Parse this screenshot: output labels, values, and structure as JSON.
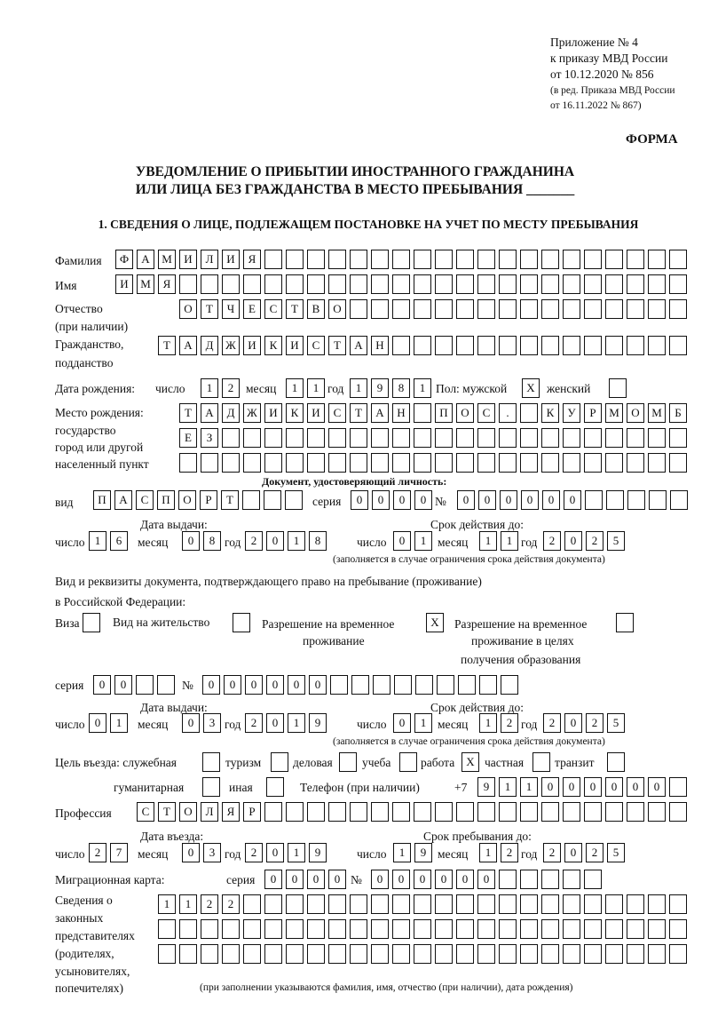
{
  "header": {
    "line1": "Приложение № 4",
    "line2": "к приказу МВД России",
    "line3": "от 10.12.2020 № 856",
    "line4": "(в ред. Приказа МВД России",
    "line5": "от 16.11.2022 № 867)",
    "forma": "ФОРМА",
    "title1": "УВЕДОМЛЕНИЕ О ПРИБЫТИИ ИНОСТРАННОГО ГРАЖДАНИНА",
    "title2": "ИЛИ ЛИЦА БЕЗ ГРАЖДАНСТВА В МЕСТО ПРЕБЫВАНИЯ _______",
    "section1": "1. СВЕДЕНИЯ О ЛИЦЕ, ПОДЛЕЖАЩЕМ ПОСТАНОВКЕ НА УЧЕТ ПО МЕСТУ ПРЕБЫВАНИЯ"
  },
  "labels": {
    "surname": "Фамилия",
    "name": "Имя",
    "patronymic1": "Отчество",
    "patronymic2": "(при наличии)",
    "citizenship1": "Гражданство,",
    "citizenship2": "подданство",
    "birth_date": "Дата рождения:",
    "day": "число",
    "month": "месяц",
    "year": "год",
    "sex_male": "Пол: мужской",
    "sex_female": "женский",
    "birth_place1": "Место рождения:",
    "birth_place2": "государство",
    "birth_place3": "город или другой",
    "birth_place4": "населенный пункт",
    "id_doc": "Документ, удостоверяющий личность:",
    "kind": "вид",
    "series": "серия",
    "number": "№",
    "issue_date": "Дата выдачи:",
    "valid_until": "Срок действия до:",
    "valid_note": "(заполняется в случае ограничения срока действия документа)",
    "right_doc1": "Вид и реквизиты документа, подтверждающего право на пребывание (проживание)",
    "right_doc2": "в Российской Федерации:",
    "visa": "Виза",
    "residence_permit": "Вид на жительство",
    "temp_permit1": "Разрешение на временное",
    "temp_permit2": "проживание",
    "temp_edu1": "Разрешение на временное",
    "temp_edu2": "проживание в целях",
    "temp_edu3": "получения образования",
    "purpose": "Цель въезда: служебная",
    "tourism": "туризм",
    "business": "деловая",
    "study": "учеба",
    "work": "работа",
    "private": "частная",
    "transit": "транзит",
    "humanitarian": "гуманитарная",
    "other": "иная",
    "phone": "Телефон (при наличии)",
    "phone_prefix": "+7",
    "profession": "Профессия",
    "entry_date": "Дата въезда:",
    "stay_until": "Срок пребывания до:",
    "migration_card": "Миграционная карта:",
    "reps1": "Сведения о",
    "reps2": "законных",
    "reps3": "представителях",
    "reps4": "(родителях,",
    "reps5": "усыновителях,",
    "reps6": "попечителях)",
    "reps_note": "(при заполнении указываются фамилия, имя, отчество (при наличии), дата рождения)"
  },
  "fields": {
    "surname": "ФАМИЛИЯ",
    "name": "ИМЯ",
    "patronymic": "ОТЧЕСТВО",
    "citizenship": "ТАДЖИКИСТАН",
    "birth_day": "12",
    "birth_month": "11",
    "birth_year": "1981",
    "sex_male": "X",
    "sex_female": "",
    "birth_place_1": "ТАДЖИКИСТАН ПОС. КУРМОМБ",
    "birth_place_2": "ЕЗ",
    "birth_place_3": "",
    "doc_kind": "ПАСПОРТ",
    "doc_series": "0000",
    "doc_number": "000000",
    "doc_issue_day": "16",
    "doc_issue_month": "08",
    "doc_issue_year": "2018",
    "doc_valid_day": "01",
    "doc_valid_month": "11",
    "doc_valid_year": "2025",
    "visa": "",
    "residence_permit": "",
    "temp_permit": "X",
    "temp_edu": "",
    "right_series": "00",
    "right_number": "000000",
    "right_issue_day": "01",
    "right_issue_month": "03",
    "right_issue_year": "2019",
    "right_valid_day": "01",
    "right_valid_month": "12",
    "right_valid_year": "2025",
    "purpose_official": "",
    "purpose_tourism": "",
    "purpose_business": "",
    "purpose_study": "",
    "purpose_work": "X",
    "purpose_private": "",
    "purpose_transit": "",
    "purpose_humanitarian": "",
    "purpose_other": "",
    "phone": "911000000",
    "profession": "СТОЛЯР",
    "entry_day": "27",
    "entry_month": "03",
    "entry_year": "2019",
    "stay_day": "19",
    "stay_month": "12",
    "stay_year": "2025",
    "mig_series": "0000",
    "mig_number": "000000",
    "reps_1": "1122",
    "reps_2": "",
    "reps_3": ""
  }
}
